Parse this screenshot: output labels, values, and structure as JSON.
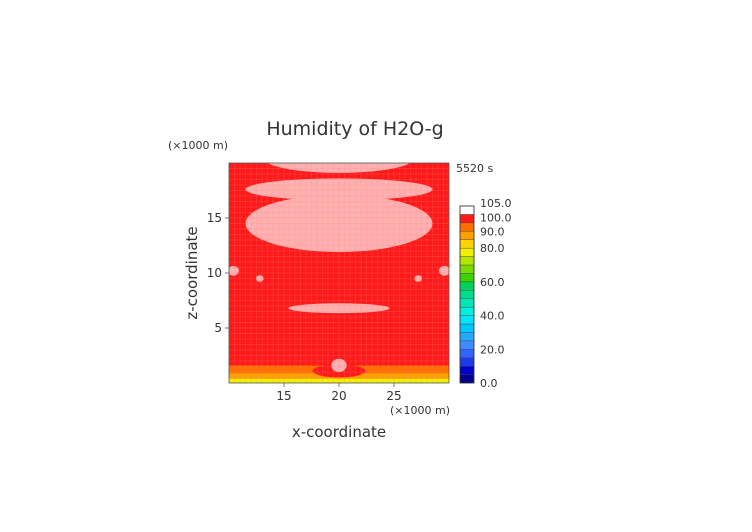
{
  "title": "Humidity of H2O-g",
  "time_label": "5520 s",
  "x_unit_label": "(×1000 m)",
  "z_unit_label": "(×1000 m)",
  "colors": {
    "background": "#ffffff",
    "field_main": "#ff1a1a",
    "field_pink": "#ffb0b0",
    "grid": "#ff8080"
  },
  "chart_data": {
    "type": "heatmap",
    "title": "Humidity of H2O-g",
    "xlabel": "x-coordinate",
    "ylabel": "z-coordinate",
    "xlim": [
      10,
      30
    ],
    "ylim": [
      0,
      20
    ],
    "x_ticks": [
      15,
      20,
      25
    ],
    "y_ticks": [
      5,
      10,
      15
    ],
    "time": "5520 s",
    "colorbar": {
      "range": [
        0,
        105
      ],
      "ticks": [
        "105.0",
        "100.0",
        "90.0",
        "80.0",
        "60.0",
        "40.0",
        "20.0",
        "0.0"
      ],
      "levels": [
        {
          "from": 0,
          "to": 5,
          "color": "#00008b"
        },
        {
          "from": 5,
          "to": 10,
          "color": "#0000cd"
        },
        {
          "from": 10,
          "to": 15,
          "color": "#1a3ce6"
        },
        {
          "from": 15,
          "to": 20,
          "color": "#2f64ff"
        },
        {
          "from": 20,
          "to": 25,
          "color": "#3c8cff"
        },
        {
          "from": 25,
          "to": 30,
          "color": "#22aaff"
        },
        {
          "from": 30,
          "to": 35,
          "color": "#00c8ff"
        },
        {
          "from": 35,
          "to": 40,
          "color": "#00e6ff"
        },
        {
          "from": 40,
          "to": 45,
          "color": "#00f0e0"
        },
        {
          "from": 45,
          "to": 50,
          "color": "#00e6b4"
        },
        {
          "from": 50,
          "to": 55,
          "color": "#00dc8c"
        },
        {
          "from": 55,
          "to": 60,
          "color": "#00d25a"
        },
        {
          "from": 60,
          "to": 65,
          "color": "#3cd200"
        },
        {
          "from": 65,
          "to": 70,
          "color": "#78dc00"
        },
        {
          "from": 70,
          "to": 75,
          "color": "#b4e600"
        },
        {
          "from": 75,
          "to": 80,
          "color": "#f0f000"
        },
        {
          "from": 80,
          "to": 85,
          "color": "#ffd200"
        },
        {
          "from": 85,
          "to": 90,
          "color": "#ffa000"
        },
        {
          "from": 90,
          "to": 95,
          "color": "#ff6e00"
        },
        {
          "from": 95,
          "to": 100,
          "color": "#ff1a1a"
        },
        {
          "from": 100,
          "to": 105,
          "color": "#ffffff"
        }
      ]
    },
    "regions": [
      {
        "kind": "rect",
        "x": [
          10,
          30
        ],
        "z": [
          0,
          20
        ],
        "value": 98
      },
      {
        "kind": "rect",
        "x": [
          10,
          30
        ],
        "z": [
          0,
          0.4
        ],
        "value": 78
      },
      {
        "kind": "rect",
        "x": [
          10,
          30
        ],
        "z": [
          0.4,
          0.9
        ],
        "value": 88
      },
      {
        "kind": "rect",
        "x": [
          10,
          30
        ],
        "z": [
          0.9,
          1.6
        ],
        "value": 93
      },
      {
        "kind": "rect",
        "x": [
          10,
          30
        ],
        "z": [
          1.6,
          2.8
        ],
        "value": 96
      },
      {
        "kind": "ellipse",
        "cx": 20,
        "cz": 1.1,
        "rx": 2.4,
        "rz": 0.6,
        "value": 99
      },
      {
        "kind": "ellipse",
        "cx": 20,
        "cz": 1.6,
        "rx": 0.7,
        "rz": 0.6,
        "value": 101
      },
      {
        "kind": "ellipse",
        "cx": 20,
        "cz": 6.8,
        "rx": 4.6,
        "rz": 0.45,
        "value": 101
      },
      {
        "kind": "ellipse",
        "cx": 20,
        "cz": 14.5,
        "rx": 8.5,
        "rz": 2.6,
        "value": 101
      },
      {
        "kind": "ellipse",
        "cx": 20,
        "cz": 17.6,
        "rx": 8.5,
        "rz": 1.0,
        "value": 101
      },
      {
        "kind": "ellipse",
        "cx": 20,
        "cz": 20.4,
        "rx": 6.8,
        "rz": 1.3,
        "value": 101
      },
      {
        "kind": "ellipse",
        "cx": 10.4,
        "cz": 10.2,
        "rx": 0.5,
        "rz": 0.45,
        "value": 101
      },
      {
        "kind": "ellipse",
        "cx": 29.6,
        "cz": 10.2,
        "rx": 0.5,
        "rz": 0.45,
        "value": 101
      },
      {
        "kind": "ellipse",
        "cx": 12.8,
        "cz": 9.5,
        "rx": 0.35,
        "rz": 0.3,
        "value": 101
      },
      {
        "kind": "ellipse",
        "cx": 27.2,
        "cz": 9.5,
        "rx": 0.35,
        "rz": 0.3,
        "value": 101
      }
    ]
  }
}
